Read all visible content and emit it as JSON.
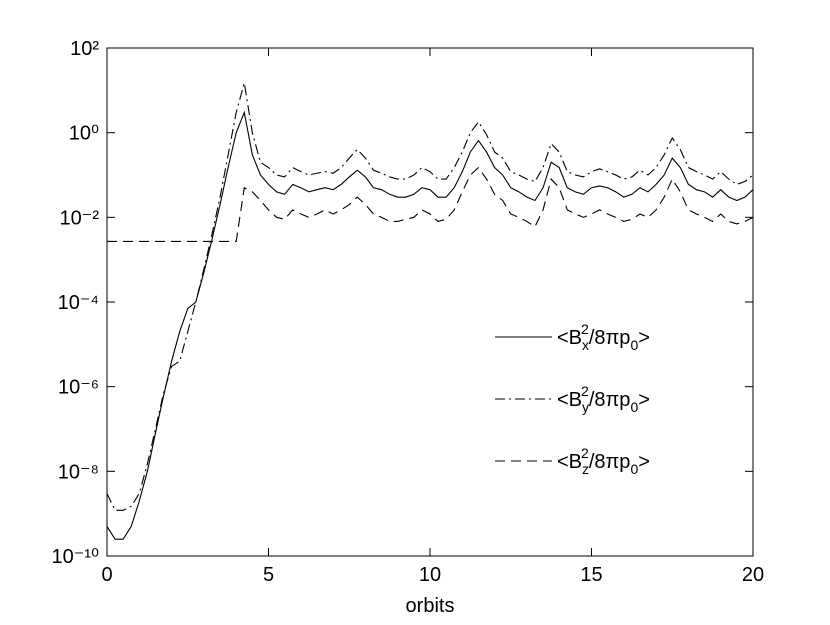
{
  "chart_data": {
    "type": "line",
    "xlabel": "orbits",
    "yscale": "log",
    "legend": "center right",
    "xlim": [
      0,
      20
    ],
    "ylim": [
      1e-10,
      100
    ],
    "xticks": [
      0,
      5,
      10,
      15,
      20
    ],
    "yticks": [
      {
        "value": 100,
        "label": "10²"
      },
      {
        "value": 1,
        "label": "10⁰"
      },
      {
        "value": 0.01,
        "label": "10⁻²"
      },
      {
        "value": 0.0001,
        "label": "10⁻⁴"
      },
      {
        "value": 1e-06,
        "label": "10⁻⁶"
      },
      {
        "value": 1e-08,
        "label": "10⁻⁸"
      },
      {
        "value": 1e-10,
        "label": "10⁻¹⁰"
      }
    ],
    "x": [
      0,
      0.25,
      0.5,
      0.75,
      1,
      1.25,
      1.5,
      1.75,
      2,
      2.25,
      2.5,
      2.75,
      3,
      3.25,
      3.5,
      3.75,
      4,
      4.25,
      4.5,
      4.75,
      5,
      5.25,
      5.5,
      5.75,
      6,
      6.25,
      6.5,
      6.75,
      7,
      7.25,
      7.5,
      7.75,
      8,
      8.25,
      8.5,
      8.75,
      9,
      9.25,
      9.5,
      9.75,
      10,
      10.25,
      10.5,
      10.75,
      11,
      11.25,
      11.5,
      11.75,
      12,
      12.25,
      12.5,
      12.75,
      13,
      13.25,
      13.5,
      13.75,
      14,
      14.25,
      14.5,
      14.75,
      15,
      15.25,
      15.5,
      15.75,
      16,
      16.25,
      16.5,
      16.75,
      17,
      17.25,
      17.5,
      17.75,
      18,
      18.25,
      18.5,
      18.75,
      19,
      19.25,
      19.5,
      19.75,
      20
    ],
    "series": [
      {
        "name": "<Bx2/8πp0>",
        "color": "#000000",
        "dash": "solid",
        "values": [
          5e-10,
          2.5e-10,
          2.5e-10,
          5e-10,
          2e-09,
          1e-08,
          8e-08,
          6e-07,
          4e-06,
          2e-05,
          7e-05,
          0.0001,
          0.0005,
          0.003,
          0.02,
          0.15,
          1.0,
          3.0,
          0.3,
          0.1,
          0.06,
          0.04,
          0.035,
          0.06,
          0.05,
          0.04,
          0.045,
          0.05,
          0.045,
          0.06,
          0.09,
          0.13,
          0.09,
          0.05,
          0.045,
          0.035,
          0.03,
          0.03,
          0.035,
          0.05,
          0.045,
          0.03,
          0.03,
          0.05,
          0.12,
          0.35,
          0.65,
          0.35,
          0.15,
          0.1,
          0.05,
          0.04,
          0.03,
          0.025,
          0.05,
          0.2,
          0.15,
          0.05,
          0.04,
          0.035,
          0.05,
          0.055,
          0.05,
          0.04,
          0.03,
          0.035,
          0.05,
          0.04,
          0.06,
          0.1,
          0.25,
          0.15,
          0.06,
          0.045,
          0.04,
          0.03,
          0.045,
          0.03,
          0.025,
          0.03,
          0.045
        ]
      },
      {
        "name": "<By2/8πp0>",
        "color": "#000000",
        "dash": "dashdot",
        "values": [
          3e-09,
          1.2e-09,
          1.2e-09,
          1.5e-09,
          3e-09,
          1.5e-08,
          1e-07,
          7e-07,
          3e-06,
          4e-06,
          2e-05,
          0.0001,
          0.0006,
          0.004,
          0.03,
          0.3,
          3,
          15,
          1.0,
          0.2,
          0.15,
          0.1,
          0.09,
          0.15,
          0.12,
          0.1,
          0.11,
          0.12,
          0.11,
          0.15,
          0.25,
          0.4,
          0.25,
          0.13,
          0.11,
          0.09,
          0.08,
          0.08,
          0.1,
          0.15,
          0.12,
          0.08,
          0.08,
          0.15,
          0.35,
          1.0,
          1.8,
          0.9,
          0.35,
          0.25,
          0.12,
          0.1,
          0.08,
          0.07,
          0.15,
          0.55,
          0.35,
          0.12,
          0.1,
          0.09,
          0.12,
          0.14,
          0.12,
          0.1,
          0.08,
          0.09,
          0.13,
          0.1,
          0.15,
          0.3,
          0.75,
          0.4,
          0.15,
          0.12,
          0.1,
          0.08,
          0.12,
          0.08,
          0.06,
          0.07,
          0.1
        ]
      },
      {
        "name": "<Bz2/8πp0>",
        "color": "#000000",
        "dash": "dashed",
        "values": [
          0.0027,
          0.0027,
          0.0027,
          0.0027,
          0.0027,
          0.0027,
          0.0027,
          0.0027,
          0.0027,
          0.0027,
          0.0027,
          0.0027,
          0.0027,
          0.0027,
          0.0027,
          0.0027,
          0.0027,
          0.05,
          0.04,
          0.025,
          0.015,
          0.01,
          0.009,
          0.015,
          0.012,
          0.01,
          0.012,
          0.015,
          0.012,
          0.015,
          0.02,
          0.03,
          0.02,
          0.012,
          0.01,
          0.008,
          0.008,
          0.009,
          0.01,
          0.015,
          0.012,
          0.008,
          0.009,
          0.015,
          0.04,
          0.1,
          0.15,
          0.08,
          0.035,
          0.025,
          0.012,
          0.01,
          0.008,
          0.006,
          0.015,
          0.08,
          0.05,
          0.015,
          0.012,
          0.01,
          0.012,
          0.015,
          0.012,
          0.01,
          0.008,
          0.009,
          0.012,
          0.01,
          0.015,
          0.03,
          0.08,
          0.04,
          0.015,
          0.012,
          0.01,
          0.008,
          0.012,
          0.008,
          0.007,
          0.008,
          0.01
        ]
      }
    ]
  }
}
